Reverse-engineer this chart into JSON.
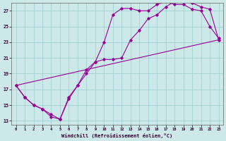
{
  "xlabel": "Windchill (Refroidissement éolien,°C)",
  "background_color": "#cce8e8",
  "line_color": "#990099",
  "grid_color": "#99cccc",
  "xlim": [
    -0.5,
    23.5
  ],
  "ylim": [
    12.5,
    28.0
  ],
  "yticks": [
    13,
    15,
    17,
    19,
    21,
    23,
    25,
    27
  ],
  "xticks": [
    0,
    1,
    2,
    3,
    4,
    5,
    6,
    7,
    8,
    9,
    10,
    11,
    12,
    13,
    14,
    15,
    16,
    17,
    18,
    19,
    20,
    21,
    22,
    23
  ],
  "line1_x": [
    0,
    1,
    2,
    3,
    4,
    5,
    6,
    7,
    8,
    9,
    10,
    11,
    12,
    13,
    14,
    15,
    16,
    17,
    18,
    19,
    20,
    21,
    22,
    23
  ],
  "line1_y": [
    17.5,
    16.0,
    15.0,
    14.5,
    13.5,
    13.2,
    15.8,
    17.5,
    19.0,
    20.5,
    23.0,
    26.5,
    27.3,
    27.3,
    27.0,
    27.0,
    27.8,
    28.2,
    27.8,
    27.8,
    27.2,
    27.0,
    25.0,
    23.5
  ],
  "line2_x": [
    0,
    1,
    2,
    3,
    4,
    5,
    6,
    7,
    8,
    9,
    10,
    11,
    12,
    13,
    14,
    15,
    16,
    17,
    18,
    19,
    20,
    21,
    22,
    23
  ],
  "line2_y": [
    17.5,
    16.0,
    15.0,
    14.5,
    13.8,
    13.2,
    16.0,
    17.5,
    19.5,
    20.5,
    20.8,
    20.8,
    21.0,
    23.3,
    24.5,
    26.0,
    26.5,
    27.5,
    28.2,
    28.2,
    28.0,
    27.5,
    27.2,
    23.3
  ],
  "line3_x": [
    0,
    23
  ],
  "line3_y": [
    17.5,
    23.3
  ]
}
